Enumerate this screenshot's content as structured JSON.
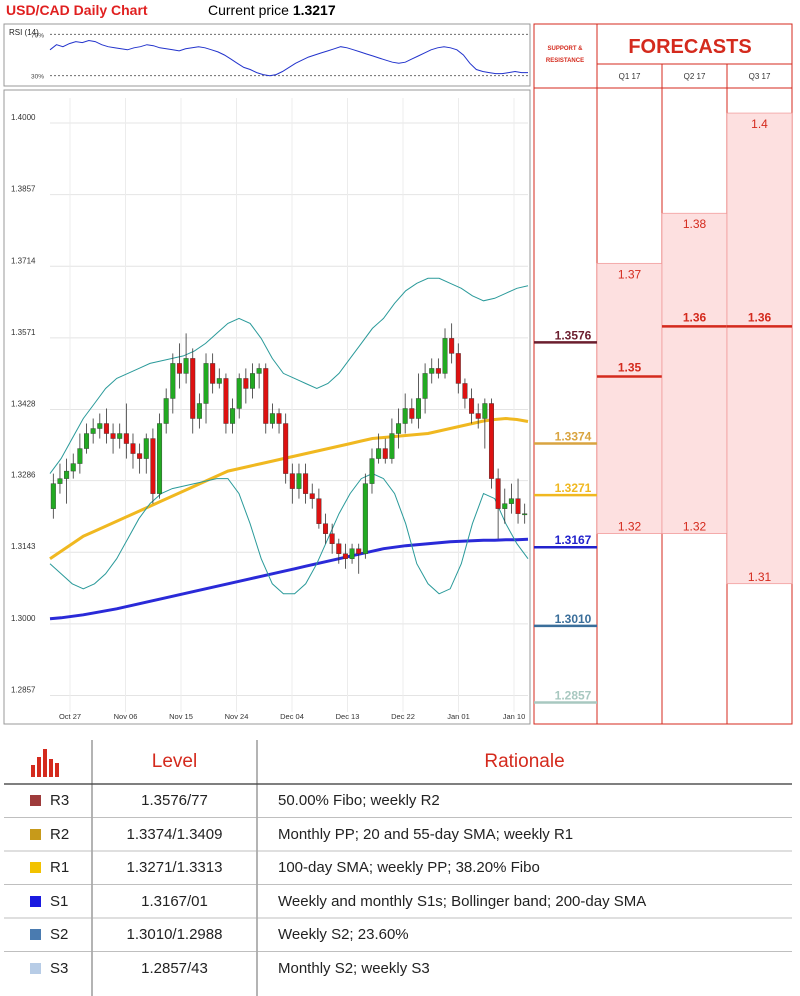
{
  "header": {
    "title": "USD/CAD Daily Chart",
    "price_prefix": "Current price",
    "price_value": "1.3217"
  },
  "colors": {
    "accent_red": "#d42a1d",
    "bull": "#22aa22",
    "bear": "#dd1111",
    "sma_fast": "#f0b820",
    "sma_slow": "#2a2ad8",
    "bollinger": "#2a9a9a",
    "forecast_fill": "#fde0e0"
  },
  "chart_data": [
    {
      "type": "line",
      "title": "RSI (14)",
      "ylim": [
        20,
        80
      ],
      "reference_lines": [
        {
          "label": "70%",
          "value": 70
        },
        {
          "label": "30%",
          "value": 30
        }
      ],
      "values": [
        55,
        60,
        58,
        61,
        63,
        62,
        64,
        63,
        60,
        58,
        57,
        56,
        55,
        57,
        58,
        60,
        59,
        57,
        56,
        55,
        54,
        56,
        57,
        58,
        57,
        55,
        53,
        50,
        46,
        42,
        38,
        36,
        33,
        31,
        30,
        31,
        34,
        38,
        42,
        45,
        48,
        50,
        52,
        54,
        56,
        58,
        57,
        55,
        53,
        51,
        49,
        47,
        45,
        43,
        42,
        43,
        46,
        49,
        52,
        55,
        57,
        58,
        57,
        55,
        50,
        42,
        36,
        34,
        33,
        32,
        32,
        33,
        34,
        33,
        33
      ]
    },
    {
      "type": "candlestick",
      "title": "",
      "ylim": [
        1.28,
        1.405
      ],
      "yticks": [
        "1.4000",
        "1.3857",
        "1.3714",
        "1.3571",
        "1.3428",
        "1.3286",
        "1.3143",
        "1.3000",
        "1.2857"
      ],
      "xticks": [
        "Oct 27",
        "Nov 06",
        "Nov 15",
        "Nov 24",
        "Dec 04",
        "Dec 13",
        "Dec 22",
        "Jan 01",
        "Jan 10"
      ],
      "candles": [
        [
          1.323,
          1.328,
          1.33,
          1.321
        ],
        [
          1.328,
          1.329,
          1.332,
          1.326
        ],
        [
          1.329,
          1.3305,
          1.333,
          1.324
        ],
        [
          1.3305,
          1.332,
          1.334,
          1.329
        ],
        [
          1.332,
          1.335,
          1.338,
          1.33
        ],
        [
          1.335,
          1.338,
          1.34,
          1.334
        ],
        [
          1.338,
          1.339,
          1.341,
          1.336
        ],
        [
          1.339,
          1.34,
          1.342,
          1.337
        ],
        [
          1.34,
          1.338,
          1.343,
          1.336
        ],
        [
          1.338,
          1.337,
          1.34,
          1.334
        ],
        [
          1.337,
          1.338,
          1.34,
          1.335
        ],
        [
          1.338,
          1.336,
          1.344,
          1.333
        ],
        [
          1.336,
          1.334,
          1.338,
          1.331
        ],
        [
          1.334,
          1.333,
          1.336,
          1.33
        ],
        [
          1.333,
          1.337,
          1.338,
          1.33
        ],
        [
          1.337,
          1.326,
          1.339,
          1.324
        ],
        [
          1.326,
          1.34,
          1.342,
          1.325
        ],
        [
          1.34,
          1.345,
          1.347,
          1.338
        ],
        [
          1.345,
          1.352,
          1.354,
          1.342
        ],
        [
          1.352,
          1.35,
          1.356,
          1.347
        ],
        [
          1.35,
          1.353,
          1.358,
          1.348
        ],
        [
          1.353,
          1.341,
          1.355,
          1.338
        ],
        [
          1.341,
          1.344,
          1.346,
          1.339
        ],
        [
          1.344,
          1.352,
          1.354,
          1.34
        ],
        [
          1.352,
          1.348,
          1.354,
          1.346
        ],
        [
          1.348,
          1.349,
          1.351,
          1.347
        ],
        [
          1.349,
          1.34,
          1.35,
          1.338
        ],
        [
          1.34,
          1.343,
          1.345,
          1.338
        ],
        [
          1.343,
          1.349,
          1.35,
          1.341
        ],
        [
          1.349,
          1.347,
          1.351,
          1.344
        ],
        [
          1.347,
          1.35,
          1.352,
          1.345
        ],
        [
          1.35,
          1.351,
          1.352,
          1.347
        ],
        [
          1.351,
          1.34,
          1.352,
          1.338
        ],
        [
          1.34,
          1.342,
          1.344,
          1.339
        ],
        [
          1.342,
          1.34,
          1.343,
          1.338
        ],
        [
          1.34,
          1.33,
          1.342,
          1.328
        ],
        [
          1.33,
          1.327,
          1.332,
          1.324
        ],
        [
          1.327,
          1.33,
          1.332,
          1.325
        ],
        [
          1.33,
          1.326,
          1.332,
          1.324
        ],
        [
          1.326,
          1.325,
          1.328,
          1.323
        ],
        [
          1.325,
          1.32,
          1.327,
          1.319
        ],
        [
          1.32,
          1.318,
          1.322,
          1.316
        ],
        [
          1.318,
          1.316,
          1.32,
          1.314
        ],
        [
          1.316,
          1.314,
          1.317,
          1.312
        ],
        [
          1.314,
          1.313,
          1.316,
          1.311
        ],
        [
          1.313,
          1.315,
          1.316,
          1.312
        ],
        [
          1.315,
          1.314,
          1.316,
          1.31
        ],
        [
          1.314,
          1.328,
          1.33,
          1.313
        ],
        [
          1.328,
          1.333,
          1.335,
          1.326
        ],
        [
          1.333,
          1.335,
          1.338,
          1.332
        ],
        [
          1.335,
          1.333,
          1.337,
          1.332
        ],
        [
          1.333,
          1.338,
          1.341,
          1.332
        ],
        [
          1.338,
          1.34,
          1.343,
          1.335
        ],
        [
          1.34,
          1.343,
          1.346,
          1.338
        ],
        [
          1.343,
          1.341,
          1.345,
          1.34
        ],
        [
          1.341,
          1.345,
          1.35,
          1.339
        ],
        [
          1.345,
          1.35,
          1.352,
          1.342
        ],
        [
          1.35,
          1.351,
          1.353,
          1.348
        ],
        [
          1.351,
          1.35,
          1.353,
          1.349
        ],
        [
          1.35,
          1.357,
          1.359,
          1.349
        ],
        [
          1.357,
          1.354,
          1.36,
          1.352
        ],
        [
          1.354,
          1.348,
          1.356,
          1.346
        ],
        [
          1.348,
          1.345,
          1.349,
          1.343
        ],
        [
          1.345,
          1.342,
          1.347,
          1.34
        ],
        [
          1.342,
          1.341,
          1.344,
          1.339
        ],
        [
          1.341,
          1.344,
          1.345,
          1.335
        ],
        [
          1.344,
          1.329,
          1.345,
          1.327
        ],
        [
          1.329,
          1.323,
          1.331,
          1.317
        ],
        [
          1.323,
          1.324,
          1.327,
          1.32
        ],
        [
          1.324,
          1.325,
          1.328,
          1.322
        ],
        [
          1.325,
          1.322,
          1.329,
          1.32
        ],
        [
          1.322,
          1.322,
          1.324,
          1.32
        ]
      ],
      "series": [
        {
          "name": "SMA fast",
          "color": "#f0b820",
          "values": [
            1.313,
            1.3145,
            1.316,
            1.3175,
            1.3185,
            1.3195,
            1.3205,
            1.3215,
            1.3225,
            1.3235,
            1.3245,
            1.3255,
            1.3265,
            1.3275,
            1.3285,
            1.3295,
            1.3305,
            1.331,
            1.3315,
            1.332,
            1.3325,
            1.333,
            1.3335,
            1.334,
            1.3345,
            1.335,
            1.3355,
            1.336,
            1.3365,
            1.337,
            1.3372,
            1.3374,
            1.3376,
            1.3378,
            1.338,
            1.3385,
            1.339,
            1.3395,
            1.34,
            1.3405,
            1.3408,
            1.341,
            1.3408,
            1.3404
          ]
        },
        {
          "name": "SMA slow",
          "color": "#2a2ad8",
          "values": [
            1.301,
            1.3012,
            1.3015,
            1.3018,
            1.3022,
            1.3026,
            1.303,
            1.3035,
            1.304,
            1.3045,
            1.305,
            1.3055,
            1.306,
            1.3065,
            1.307,
            1.3075,
            1.308,
            1.3085,
            1.309,
            1.3095,
            1.31,
            1.3105,
            1.311,
            1.3115,
            1.312,
            1.3125,
            1.313,
            1.3135,
            1.314,
            1.3145,
            1.315,
            1.3153,
            1.3156,
            1.3158,
            1.316,
            1.3162,
            1.3164,
            1.3165,
            1.3166,
            1.3167,
            1.3167,
            1.3168,
            1.3168,
            1.3169
          ]
        },
        {
          "name": "Bollinger upper",
          "color": "#2a9a9a",
          "values": [
            1.33,
            1.333,
            1.337,
            1.341,
            1.344,
            1.347,
            1.349,
            1.35,
            1.351,
            1.352,
            1.3525,
            1.353,
            1.3535,
            1.3545,
            1.356,
            1.358,
            1.36,
            1.361,
            1.36,
            1.357,
            1.353,
            1.35,
            1.349,
            1.348,
            1.347,
            1.348,
            1.35,
            1.353,
            1.356,
            1.359,
            1.361,
            1.364,
            1.3665,
            1.368,
            1.369,
            1.369,
            1.368,
            1.367,
            1.3655,
            1.3645,
            1.365,
            1.366,
            1.367,
            1.3675
          ]
        },
        {
          "name": "Bollinger lower",
          "color": "#2a9a9a",
          "values": [
            1.312,
            1.31,
            1.308,
            1.307,
            1.308,
            1.31,
            1.313,
            1.317,
            1.321,
            1.324,
            1.326,
            1.327,
            1.3275,
            1.328,
            1.3285,
            1.329,
            1.329,
            1.326,
            1.32,
            1.313,
            1.308,
            1.306,
            1.306,
            1.308,
            1.312,
            1.317,
            1.322,
            1.326,
            1.329,
            1.33,
            1.329,
            1.326,
            1.32,
            1.312,
            1.308,
            1.306,
            1.307,
            1.312,
            1.32,
            1.326,
            1.325,
            1.32,
            1.316,
            1.313
          ]
        }
      ],
      "levels": [
        {
          "label": "1.3576",
          "value": 1.3576,
          "color": "#6b1e2e"
        },
        {
          "label": "1.3374",
          "value": 1.3374,
          "color": "#d9a440"
        },
        {
          "label": "1.3271",
          "value": 1.3271,
          "color": "#f0b820"
        },
        {
          "label": "1.3167",
          "value": 1.3167,
          "color": "#2222cc"
        },
        {
          "label": "1.3010",
          "value": 1.301,
          "color": "#3a6e9a"
        },
        {
          "label": "1.2857",
          "value": 1.2857,
          "color": "#a8c8c0"
        }
      ]
    },
    {
      "type": "bar",
      "title": "FORECASTS",
      "column_header": "SUPPORT & RESISTANCE",
      "categories": [
        "Q1 17",
        "Q2 17",
        "Q3 17"
      ],
      "ranges": [
        {
          "quarter": "Q1 17",
          "high": 1.37,
          "low": 1.32,
          "mid": 1.35,
          "high_label": "1.37",
          "low_label": "1.32",
          "mid_label": "1.35"
        },
        {
          "quarter": "Q2 17",
          "high": 1.38,
          "low": 1.32,
          "mid": 1.36,
          "high_label": "1.38",
          "low_label": "1.32",
          "mid_label": "1.36"
        },
        {
          "quarter": "Q3 17",
          "high": 1.4,
          "low": 1.31,
          "mid": 1.36,
          "high_label": "1.4",
          "low_label": "1.31",
          "mid_label": "1.36"
        }
      ]
    }
  ],
  "levels_table": {
    "headers": {
      "level": "Level",
      "rationale": "Rationale"
    },
    "rows": [
      {
        "name": "R3",
        "level": "1.3576/77",
        "rationale": "50.00% Fibo; weekly R2",
        "color": "#9e3b3b"
      },
      {
        "name": "R2",
        "level": "1.3374/1.3409",
        "rationale": "Monthly PP; 20 and 55-day SMA; weekly R1",
        "color": "#c79a1a"
      },
      {
        "name": "R1",
        "level": "1.3271/1.3313",
        "rationale": "100-day SMA; weekly PP; 38.20% Fibo",
        "color": "#f2c200"
      },
      {
        "name": "S1",
        "level": "1.3167/01",
        "rationale": "Weekly and monthly S1s; Bollinger band; 200-day SMA",
        "color": "#1a1ae0"
      },
      {
        "name": "S2",
        "level": "1.3010/1.2988",
        "rationale": "Weekly S2; 23.60%",
        "color": "#4a7bb0"
      },
      {
        "name": "S3",
        "level": "1.2857/43",
        "rationale": "Monthly S2; weekly S3",
        "color": "#b7cce6"
      }
    ]
  }
}
